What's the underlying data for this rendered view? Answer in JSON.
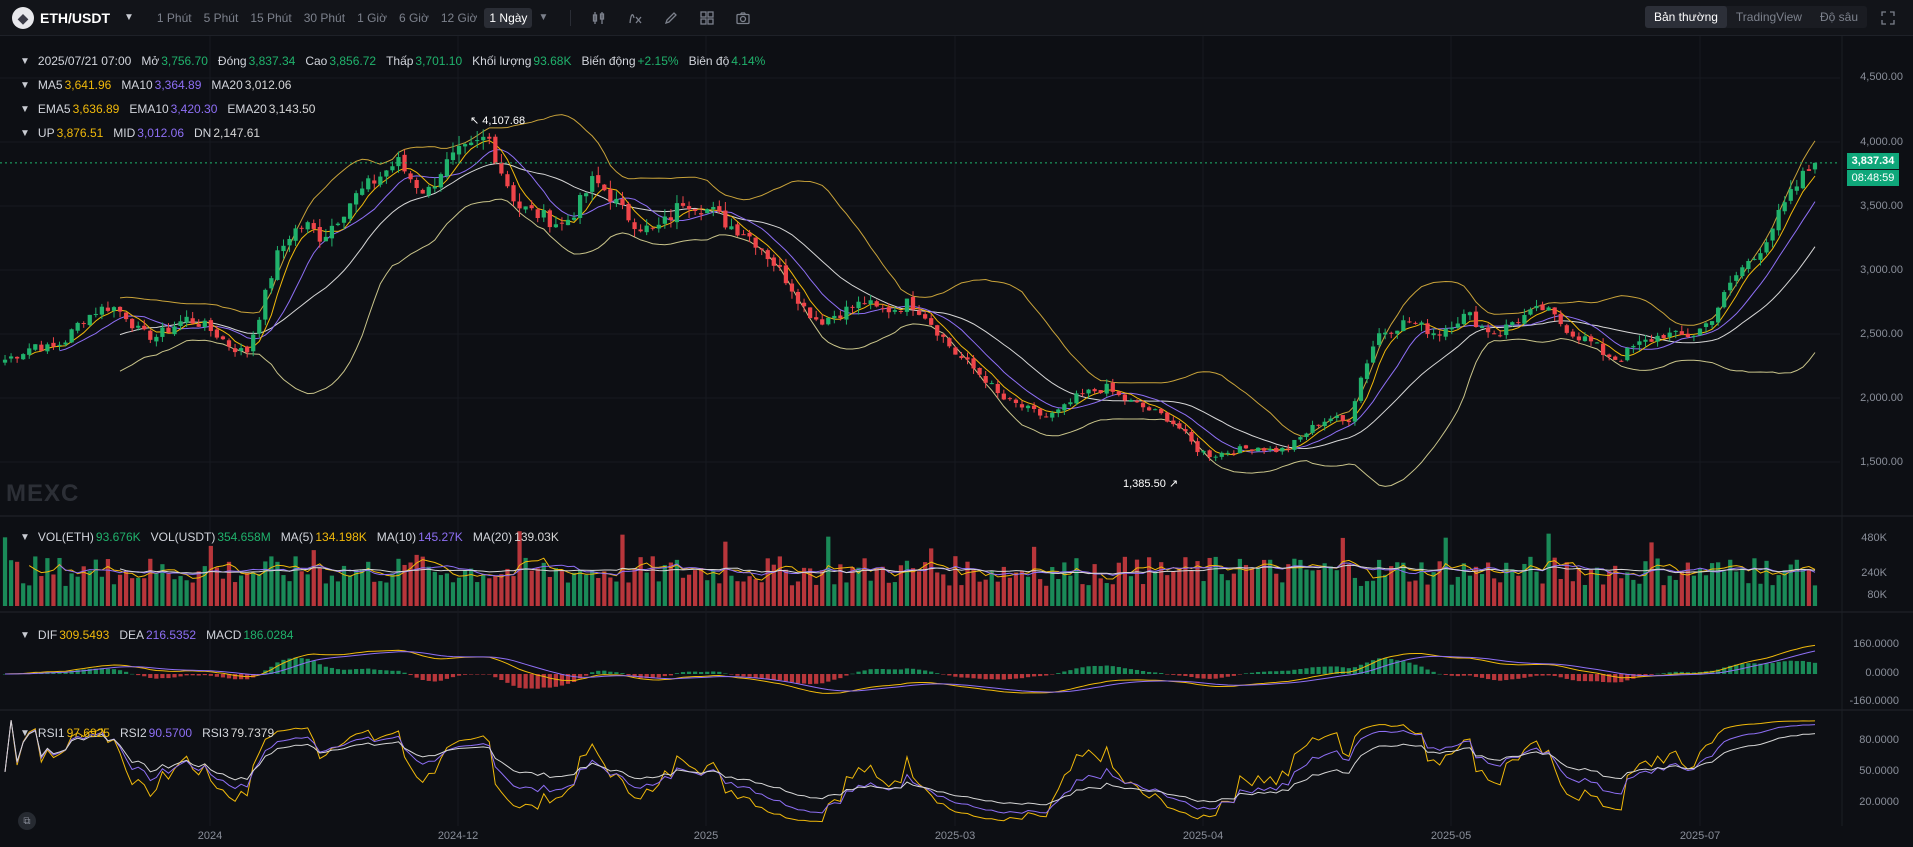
{
  "toolbar": {
    "pair": "ETH/USDT",
    "coin_icon": "ethereum-icon",
    "timeframes": [
      "1 Phút",
      "5 Phút",
      "15 Phút",
      "30 Phút",
      "1 Giờ",
      "6 Giờ",
      "12 Giờ",
      "1 Ngày"
    ],
    "active_timeframe": "1 Ngày",
    "view_modes": [
      "Bản thường",
      "TradingView",
      "Độ sâu"
    ],
    "active_view": "Bản thường"
  },
  "ohlc": {
    "date": "2025/07/21 07:00",
    "open_label": "Mở",
    "open": "3,756.70",
    "close_label": "Đóng",
    "close": "3,837.34",
    "high_label": "Cao",
    "high": "3,856.72",
    "low_label": "Thấp",
    "low": "3,701.10",
    "volume_label": "Khối lượng",
    "volume": "93.68K",
    "change_label": "Biến động",
    "change": "+2.15%",
    "amplitude_label": "Biên độ",
    "amplitude": "4.14%"
  },
  "ma": {
    "ma5_label": "MA5",
    "ma5": "3,641.96",
    "ma10_label": "MA10",
    "ma10": "3,364.89",
    "ma20_label": "MA20",
    "ma20": "3,012.06"
  },
  "ema": {
    "ema5_label": "EMA5",
    "ema5": "3,636.89",
    "ema10_label": "EMA10",
    "ema10": "3,420.30",
    "ema20_label": "EMA20",
    "ema20": "3,143.50"
  },
  "boll": {
    "up_label": "UP",
    "up": "3,876.51",
    "mid_label": "MID",
    "mid": "3,012.06",
    "dn_label": "DN",
    "dn": "2,147.61"
  },
  "vol": {
    "eth_label": "VOL(ETH)",
    "eth": "93.676K",
    "usdt_label": "VOL(USDT)",
    "usdt": "354.658M",
    "ma5_label": "MA(5)",
    "ma5": "134.198K",
    "ma10_label": "MA(10)",
    "ma10": "145.27K",
    "ma20_label": "MA(20)",
    "ma20": "139.03K"
  },
  "macd": {
    "dif_label": "DIF",
    "dif": "309.5493",
    "dea_label": "DEA",
    "dea": "216.5352",
    "macd_label": "MACD",
    "macd": "186.0284"
  },
  "rsi": {
    "rsi1_label": "RSI1",
    "rsi1": "97.6925",
    "rsi2_label": "RSI2",
    "rsi2": "90.5700",
    "rsi3_label": "RSI3",
    "rsi3": "79.7379"
  },
  "price_axis": [
    "4,500.00",
    "4,000.00",
    "3,500.00",
    "3,000.00",
    "2,500.00",
    "2,000.00",
    "1,500.00"
  ],
  "volume_axis": [
    "480K",
    "240K",
    "80K"
  ],
  "macd_axis": [
    "160.0000",
    "0.0000",
    "-160.0000"
  ],
  "rsi_axis": [
    "80.0000",
    "50.0000",
    "20.0000"
  ],
  "current_price": "3,837.34",
  "countdown": "08:48:59",
  "high_marker": "4,107.68",
  "low_marker": "1,385.50",
  "watermark": "MEXC",
  "date_axis": [
    "2024",
    "2024-12",
    "2025",
    "2025-03",
    "2025-04",
    "2025-05",
    "2025-07"
  ],
  "colors": {
    "up": "#20b26c",
    "down": "#ef454a",
    "ma5": "#f0b90b",
    "ma10": "#8e6ff5",
    "ma20": "#d6d6d6",
    "green_text": "#20b26c"
  },
  "chart_data": {
    "type": "candlestick",
    "price_path": [
      2300,
      2350,
      2420,
      2380,
      2450,
      2600,
      2680,
      2720,
      2650,
      2500,
      2480,
      2550,
      2620,
      2580,
      2500,
      2400,
      2350,
      2700,
      3100,
      3300,
      3350,
      3250,
      3400,
      3550,
      3650,
      3750,
      3850,
      3700,
      3600,
      3800,
      3900,
      3950,
      4050,
      3750,
      3500,
      3450,
      3400,
      3350,
      3500,
      3700,
      3600,
      3450,
      3350,
      3300,
      3400,
      3550,
      3500,
      3450,
      3350,
      3300,
      3200,
      3050,
      2900,
      2700,
      2600,
      2650,
      2700,
      2750,
      2680,
      2700,
      2750,
      2650,
      2500,
      2350,
      2250,
      2150,
      2000,
      1950,
      1900,
      1850,
      1900,
      2000,
      2050,
      2080,
      2000,
      1950,
      1900,
      1850,
      1750,
      1600,
      1550,
      1580,
      1600,
      1620,
      1590,
      1600,
      1700,
      1800,
      1850,
      1800,
      2200,
      2500,
      2550,
      2600,
      2550,
      2500,
      2600,
      2650,
      2550,
      2500,
      2600,
      2650,
      2700,
      2600,
      2500,
      2450,
      2350,
      2300,
      2400,
      2450,
      2500,
      2480,
      2500,
      2600,
      2800,
      3000,
      3100,
      3300,
      3500,
      3700,
      3837
    ],
    "last_close": "3,837.34"
  }
}
